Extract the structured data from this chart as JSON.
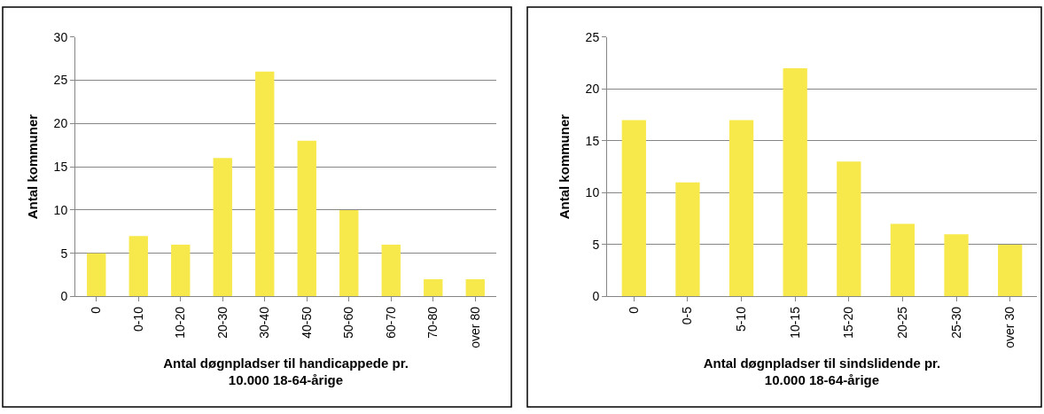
{
  "chart_data": [
    {
      "type": "bar",
      "categories": [
        "0",
        "0-10",
        "10-20",
        "20-30",
        "30-40",
        "40-50",
        "50-60",
        "60-70",
        "70-80",
        "over 80"
      ],
      "values": [
        5,
        7,
        6,
        16,
        26,
        18,
        10,
        6,
        2,
        2
      ],
      "color": "#f7e94c",
      "xlabel": "Antal døgnpladser til handicappede pr.\n10.000 18-64-årige",
      "ylabel": "Antal kommuner",
      "ylim": [
        0,
        30
      ],
      "yticks": [
        0,
        5,
        10,
        15,
        20,
        25,
        30
      ],
      "grid": "y"
    },
    {
      "type": "bar",
      "categories": [
        "0",
        "0-5",
        "5-10",
        "10-15",
        "15-20",
        "20-25",
        "25-30",
        "over 30"
      ],
      "values": [
        17,
        11,
        17,
        22,
        13,
        7,
        6,
        5
      ],
      "color": "#f7e94c",
      "xlabel": "Antal døgnpladser til sindslidende pr.\n10.000 18-64-årige",
      "ylabel": "Antal kommuner",
      "ylim": [
        0,
        25
      ],
      "yticks": [
        0,
        5,
        10,
        15,
        20,
        25
      ],
      "grid": "y"
    }
  ]
}
